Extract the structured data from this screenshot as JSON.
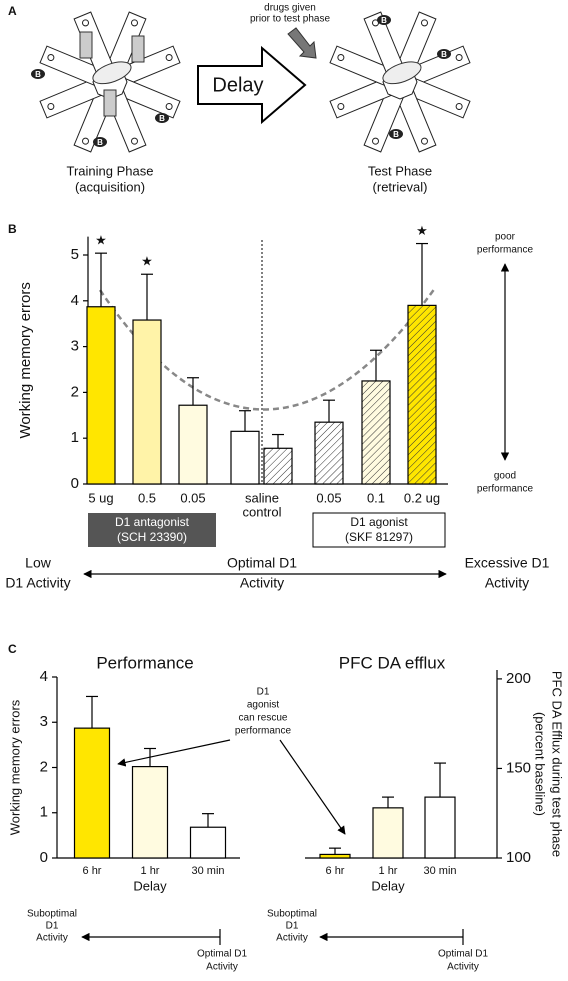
{
  "panel_labels": {
    "a": "A",
    "b": "B",
    "c": "C"
  },
  "diagram": {
    "drugs_note": [
      "drugs given",
      "prior to test phase"
    ],
    "delay": "Delay",
    "training": [
      "Training Phase",
      "(acquisition)"
    ],
    "test": [
      "Test Phase",
      "(retrieval)"
    ],
    "bait": "B"
  },
  "chart_data": [
    {
      "type": "bar",
      "ylabel": "Working memory errors",
      "categories": [
        "5 ug",
        "0.5",
        "0.05",
        null,
        null,
        "0.05",
        "0.1",
        "0.2 ug"
      ],
      "saline_label": [
        "saline",
        "control"
      ],
      "values": [
        3.87,
        3.58,
        1.72,
        1.15,
        0.78,
        1.35,
        2.25,
        3.9
      ],
      "errors": [
        1.17,
        1.0,
        0.6,
        0.45,
        0.3,
        0.48,
        0.67,
        1.35
      ],
      "colors": [
        "#ffe600",
        "#fff3a8",
        "#fffbe0",
        "#ffffff",
        "#ffffff",
        "#ffffff",
        "#fffbe0",
        "#ffe600"
      ],
      "hatched": [
        false,
        false,
        false,
        false,
        true,
        true,
        true,
        true
      ],
      "significant": [
        true,
        true,
        false,
        false,
        false,
        false,
        false,
        true
      ],
      "marker": "★",
      "ylim": [
        0,
        5.4
      ],
      "yticks": [
        0,
        1,
        2,
        3,
        4,
        5
      ],
      "poor_label": [
        "poor",
        "performance"
      ],
      "good_label": [
        "good",
        "performance"
      ],
      "groups": [
        {
          "title": "D1 antagonist",
          "subtitle": "(SCH 23390)"
        },
        {
          "title": "D1 agonist",
          "subtitle": "(SKF 81297)"
        }
      ],
      "activity": {
        "low": [
          "Low",
          "D1 Activity"
        ],
        "optimal": [
          "Optimal D1",
          "Activity"
        ],
        "excessive": [
          "Excessive D1",
          "Activity"
        ]
      }
    },
    {
      "type": "bar",
      "title": "Performance",
      "ylabel": "Working memory errors",
      "xlabel": "Delay",
      "categories": [
        "6 hr",
        "1 hr",
        "30 min"
      ],
      "values": [
        2.87,
        2.02,
        0.68
      ],
      "errors": [
        0.7,
        0.4,
        0.3
      ],
      "colors": [
        "#ffe600",
        "#fffbe0",
        "#ffffff"
      ],
      "ylim": [
        0,
        4
      ],
      "yticks": [
        0,
        1,
        2,
        3,
        4
      ],
      "annotation": [
        "D1",
        "agonist",
        "can rescue",
        "performance"
      ],
      "suboptimal": [
        "Suboptimal",
        "D1",
        "Activity"
      ],
      "optimal": [
        "Optimal D1",
        "Activity"
      ]
    },
    {
      "type": "bar",
      "title": "PFC DA efflux",
      "y2label": [
        "PFC DA Efflux during test phase",
        "(percent baseline)"
      ],
      "xlabel": "Delay",
      "categories": [
        "6 hr",
        "1 hr",
        "30 min"
      ],
      "values": [
        102,
        128,
        134
      ],
      "errors": [
        3.5,
        6,
        19
      ],
      "axis": "y2",
      "colors": [
        "#ffe600",
        "#fffbe0",
        "#ffffff"
      ],
      "y2lim": [
        100,
        205
      ],
      "y2ticks": [
        100,
        150,
        200
      ],
      "suboptimal": [
        "Suboptimal",
        "D1",
        "Activity"
      ],
      "optimal": [
        "Optimal D1",
        "Activity"
      ]
    }
  ]
}
